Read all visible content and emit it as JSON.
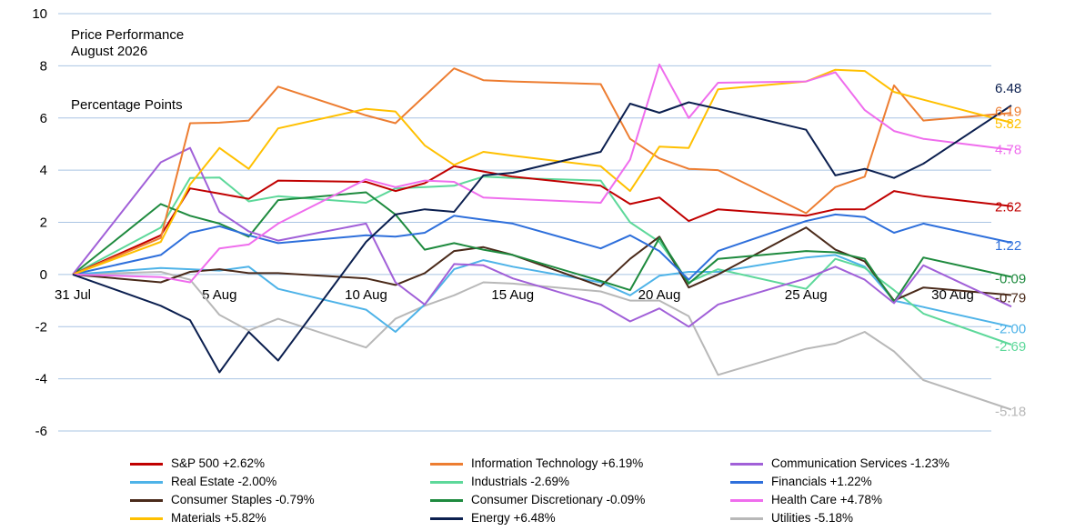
{
  "chart_data": {
    "type": "line",
    "title": "Price Performance",
    "subtitle": "August 2026",
    "ylabel": "Percentage Points",
    "ylim": [
      -6,
      10
    ],
    "yticks": [
      -6,
      -4,
      -2,
      0,
      2,
      4,
      6,
      8,
      10
    ],
    "grid": true,
    "legend_position": "bottom",
    "xtick_labels": [
      {
        "day": 0,
        "label": "31 Jul"
      },
      {
        "day": 5,
        "label": "5 Aug"
      },
      {
        "day": 10,
        "label": "10 Aug"
      },
      {
        "day": 15,
        "label": "15 Aug"
      },
      {
        "day": 20,
        "label": "20 Aug"
      },
      {
        "day": 25,
        "label": "25 Aug"
      },
      {
        "day": 30,
        "label": "30 Aug"
      }
    ],
    "x": [
      0,
      3,
      4,
      5,
      6,
      7,
      10,
      11,
      12,
      13,
      14,
      15,
      18,
      19,
      20,
      21,
      22,
      25,
      26,
      27,
      28,
      29,
      32
    ],
    "series": [
      {
        "name": "S&P 500 +2.62%",
        "color": "#c00000",
        "end_label": "2.62",
        "values": [
          0,
          1.5,
          3.3,
          3.1,
          2.9,
          3.6,
          3.55,
          3.2,
          3.5,
          4.15,
          3.95,
          3.75,
          3.4,
          2.7,
          2.95,
          2.05,
          2.5,
          2.25,
          2.5,
          2.5,
          3.2,
          3.0,
          2.62
        ]
      },
      {
        "name": "Information Technology +6.19%",
        "color": "#ed7d31",
        "end_label": "6.19",
        "values": [
          0,
          1.4,
          5.8,
          5.82,
          5.9,
          7.2,
          6.1,
          5.8,
          6.85,
          7.9,
          7.45,
          7.4,
          7.3,
          5.2,
          4.45,
          4.05,
          4.0,
          2.35,
          3.35,
          3.75,
          7.25,
          5.9,
          6.19
        ]
      },
      {
        "name": "Communication Services -1.23%",
        "color": "#a160d8",
        "end_label": "",
        "values": [
          0,
          4.3,
          4.85,
          2.4,
          1.65,
          1.3,
          1.95,
          -0.3,
          -1.15,
          0.4,
          0.35,
          -0.15,
          -1.15,
          -1.8,
          -1.3,
          -2.0,
          -1.15,
          -0.15,
          0.3,
          -0.2,
          -1.1,
          0.35,
          -1.23
        ]
      },
      {
        "name": "Real Estate -2.00%",
        "color": "#4eb3e8",
        "end_label": "-2.00",
        "values": [
          0,
          0.25,
          0.2,
          0.15,
          0.3,
          -0.55,
          -1.35,
          -2.2,
          -1.15,
          0.2,
          0.55,
          0.3,
          -0.3,
          -0.8,
          -0.05,
          0.1,
          0.1,
          0.65,
          0.75,
          0.3,
          -1.0,
          -1.25,
          -2.0
        ]
      },
      {
        "name": "Industrials -2.69%",
        "color": "#5dd89a",
        "end_label": "-2.69",
        "values": [
          0,
          1.8,
          3.7,
          3.72,
          2.8,
          3.0,
          2.75,
          3.3,
          3.35,
          3.4,
          3.75,
          3.7,
          3.6,
          2.0,
          1.25,
          -0.3,
          0.2,
          -0.55,
          0.6,
          0.25,
          -0.6,
          -1.5,
          -2.69
        ]
      },
      {
        "name": "Financials +1.22%",
        "color": "#2e6fdb",
        "end_label": "1.22",
        "values": [
          0,
          0.75,
          1.6,
          1.85,
          1.5,
          1.2,
          1.5,
          1.45,
          1.6,
          2.25,
          2.1,
          1.95,
          1.0,
          1.5,
          0.9,
          -0.2,
          0.9,
          2.05,
          2.3,
          2.2,
          1.6,
          1.95,
          1.22
        ]
      },
      {
        "name": "Consumer Staples -0.79%",
        "color": "#4a2a1a",
        "end_label": "-0.79",
        "values": [
          0,
          -0.3,
          0.1,
          0.2,
          0.05,
          0.05,
          -0.15,
          -0.4,
          0.05,
          0.9,
          1.05,
          0.75,
          -0.45,
          0.6,
          1.45,
          -0.5,
          0.0,
          1.8,
          0.95,
          0.5,
          -1.0,
          -0.5,
          -0.79
        ]
      },
      {
        "name": "Consumer Discretionary -0.09%",
        "color": "#1e8a3e",
        "end_label": "-0.09",
        "values": [
          0,
          2.7,
          2.25,
          1.95,
          1.45,
          2.85,
          3.15,
          2.3,
          0.95,
          1.2,
          0.95,
          0.75,
          -0.25,
          -0.6,
          1.4,
          -0.35,
          0.6,
          0.9,
          0.85,
          0.6,
          -1.05,
          0.65,
          -0.09
        ]
      },
      {
        "name": "Health Care +4.78%",
        "color": "#ef6ded",
        "end_label": "4.78",
        "values": [
          0,
          -0.1,
          -0.3,
          1.0,
          1.15,
          1.95,
          3.65,
          3.35,
          3.6,
          3.55,
          2.95,
          2.9,
          2.75,
          4.4,
          8.05,
          6.0,
          7.35,
          7.4,
          7.75,
          6.3,
          5.5,
          5.2,
          4.78
        ]
      },
      {
        "name": "Materials +5.82%",
        "color": "#ffc000",
        "end_label": "5.82",
        "values": [
          0,
          1.25,
          3.45,
          4.85,
          4.05,
          5.6,
          6.35,
          6.25,
          4.95,
          4.2,
          4.7,
          4.55,
          4.15,
          3.2,
          4.9,
          4.85,
          7.1,
          7.4,
          7.85,
          7.8,
          7.0,
          6.7,
          5.82
        ]
      },
      {
        "name": "Energy +6.48%",
        "color": "#0b1f4f",
        "end_label": "6.48",
        "values": [
          0,
          -1.2,
          -1.75,
          -3.75,
          -2.2,
          -3.3,
          1.25,
          2.3,
          2.5,
          2.4,
          3.8,
          3.9,
          4.7,
          6.55,
          6.2,
          6.6,
          6.35,
          5.55,
          3.8,
          4.05,
          3.7,
          4.25,
          6.48
        ]
      },
      {
        "name": "Utilities -5.18%",
        "color": "#b8b8b8",
        "end_label": "-5.18",
        "values": [
          0,
          0.1,
          -0.2,
          -1.55,
          -2.15,
          -1.7,
          -2.8,
          -1.7,
          -1.2,
          -0.8,
          -0.3,
          -0.35,
          -0.65,
          -1.0,
          -1.0,
          -1.6,
          -3.85,
          -2.85,
          -2.65,
          -2.2,
          -2.95,
          -4.05,
          -5.18
        ]
      }
    ]
  }
}
